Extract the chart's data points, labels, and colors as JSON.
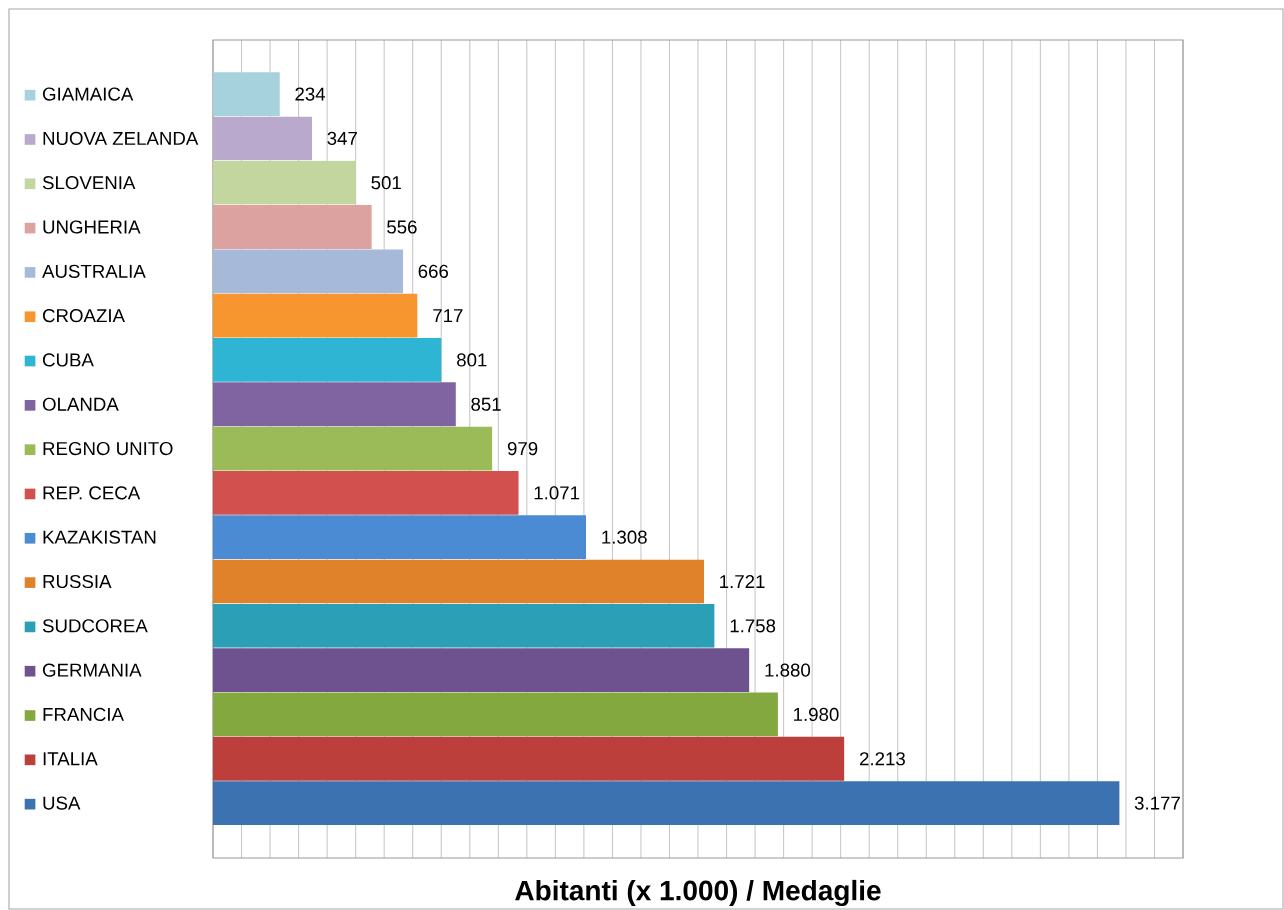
{
  "chart_data": {
    "type": "bar",
    "orientation": "horizontal",
    "xlabel": "Abitanti (x 1.000) / Medaglie",
    "categories": [
      "GIAMAICA",
      "NUOVA ZELANDA",
      "SLOVENIA",
      "UNGHERIA",
      "AUSTRALIA",
      "CROAZIA",
      "CUBA",
      "OLANDA",
      "REGNO UNITO",
      "REP. CECA",
      "KAZAKISTAN",
      "RUSSIA",
      "SUDCOREA",
      "GERMANIA",
      "FRANCIA",
      "ITALIA",
      "USA"
    ],
    "values": [
      234,
      347,
      501,
      556,
      666,
      717,
      801,
      851,
      979,
      1071,
      1308,
      1721,
      1758,
      1880,
      1980,
      2213,
      3177
    ],
    "value_labels": [
      "234",
      "347",
      "501",
      "556",
      "666",
      "717",
      "801",
      "851",
      "979",
      "1.071",
      "1.308",
      "1.721",
      "1.758",
      "1.880",
      "1.980",
      "2.213",
      "3.177"
    ],
    "colors": [
      "#a5d2dd",
      "#b9a9cc",
      "#c3d69f",
      "#dba2a0",
      "#a6b9d8",
      "#f7962f",
      "#2fb5d4",
      "#8064a2",
      "#9bbb59",
      "#d2504d",
      "#4a8bd4",
      "#e0822a",
      "#2a9fb5",
      "#6e5290",
      "#84a840",
      "#bc3f3c",
      "#3c72b0"
    ],
    "xlim": [
      0,
      3400
    ],
    "xticks": [
      {
        "value": 0,
        "label": null
      },
      {
        "value": 100,
        "label": null
      },
      {
        "value": 200,
        "label": null
      },
      {
        "value": 300,
        "label": null
      },
      {
        "value": 400,
        "label": null
      },
      {
        "value": 500,
        "label": null
      },
      {
        "value": 600,
        "label": null
      },
      {
        "value": 700,
        "label": null
      },
      {
        "value": 800,
        "label": null
      },
      {
        "value": 900,
        "label": null
      },
      {
        "value": 1000,
        "label": null
      },
      {
        "value": 1100,
        "label": null
      },
      {
        "value": 1200,
        "label": null
      },
      {
        "value": 1300,
        "label": null
      },
      {
        "value": 1400,
        "label": null
      },
      {
        "value": 1500,
        "label": null
      },
      {
        "value": 1600,
        "label": null
      },
      {
        "value": 1700,
        "label": null
      },
      {
        "value": 1800,
        "label": null
      },
      {
        "value": 1900,
        "label": null
      },
      {
        "value": 2000,
        "label": null
      },
      {
        "value": 2100,
        "label": null
      },
      {
        "value": 2200,
        "label": null
      },
      {
        "value": 2300,
        "label": null
      },
      {
        "value": 2400,
        "label": null
      },
      {
        "value": 2500,
        "label": null
      },
      {
        "value": 2600,
        "label": null
      },
      {
        "value": 2700,
        "label": null
      },
      {
        "value": 2800,
        "label": null
      },
      {
        "value": 2900,
        "label": null
      },
      {
        "value": 3000,
        "label": null
      },
      {
        "value": 3100,
        "label": null
      },
      {
        "value": 3200,
        "label": null
      },
      {
        "value": 3300,
        "label": null
      },
      {
        "value": 3400,
        "label": null
      }
    ],
    "grid": "x",
    "tick_labels": "y"
  }
}
